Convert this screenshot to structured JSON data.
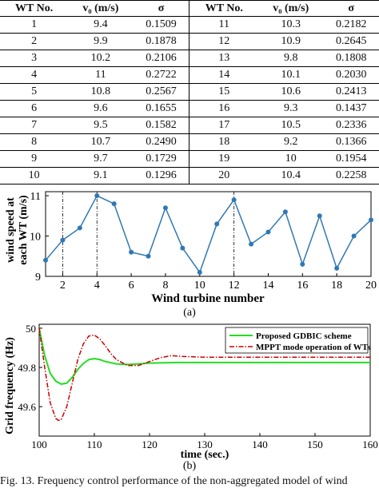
{
  "table": {
    "headers": [
      "WT No.",
      "v₀ (m/s)",
      "σ",
      "WT No.",
      "v₀ (m/s)",
      "σ"
    ],
    "rows": [
      [
        "1",
        "9.4",
        "0.1509",
        "11",
        "10.3",
        "0.2182"
      ],
      [
        "2",
        "9.9",
        "0.1878",
        "12",
        "10.9",
        "0.2645"
      ],
      [
        "3",
        "10.2",
        "0.2106",
        "13",
        "9.8",
        "0.1808"
      ],
      [
        "4",
        "11",
        "0.2722",
        "14",
        "10.1",
        "0.2030"
      ],
      [
        "5",
        "10.8",
        "0.2567",
        "15",
        "10.6",
        "0.2413"
      ],
      [
        "6",
        "9.6",
        "0.1655",
        "16",
        "9.3",
        "0.1437"
      ],
      [
        "7",
        "9.5",
        "0.1582",
        "17",
        "10.5",
        "0.2336"
      ],
      [
        "8",
        "10.7",
        "0.2490",
        "18",
        "9.2",
        "0.1366"
      ],
      [
        "9",
        "9.7",
        "0.1729",
        "19",
        "10",
        "0.1954"
      ],
      [
        "10",
        "9.1",
        "0.1296",
        "20",
        "10.4",
        "0.2258"
      ]
    ]
  },
  "chart_data": [
    {
      "type": "line",
      "panel_label": "(a)",
      "xlabel": "Wind turbine number",
      "ylabel_line1": "wind speed at",
      "ylabel_line2": "each WT (m/s)",
      "x": [
        1,
        2,
        3,
        4,
        5,
        6,
        7,
        8,
        9,
        10,
        11,
        12,
        13,
        14,
        15,
        16,
        17,
        18,
        19,
        20
      ],
      "series": [
        {
          "values": [
            9.4,
            9.9,
            10.2,
            11,
            10.8,
            9.6,
            9.5,
            10.7,
            9.7,
            9.1,
            10.3,
            10.9,
            9.8,
            10.1,
            10.6,
            9.3,
            10.5,
            9.2,
            10,
            10.4
          ],
          "color": "#2f78b4"
        }
      ],
      "xlim": [
        1,
        20
      ],
      "ylim": [
        9,
        11.1
      ],
      "xticks": [
        2,
        4,
        6,
        8,
        10,
        12,
        14,
        16,
        18,
        20
      ],
      "yticks": [
        9,
        10,
        11
      ],
      "vertical_lines": [
        2,
        4,
        12
      ]
    },
    {
      "type": "line",
      "panel_label": "(b)",
      "xlabel": "time (sec.)",
      "ylabel": "Grid frequency (Hz)",
      "xlim": [
        100,
        160
      ],
      "ylim": [
        49.45,
        50.02
      ],
      "xticks": [
        100,
        110,
        120,
        130,
        140,
        150,
        160
      ],
      "yticks": [
        49.6,
        49.8,
        50
      ],
      "legend_position": "top-right",
      "series": [
        {
          "name": "Proposed GDBIC scheme",
          "color": "#22dd22",
          "style": "solid",
          "x": [
            100,
            101,
            102,
            103,
            104,
            105,
            106,
            107,
            108,
            109,
            110,
            111,
            112,
            114,
            116,
            118,
            120,
            125,
            130,
            140,
            150,
            160
          ],
          "values": [
            50,
            49.86,
            49.77,
            49.73,
            49.715,
            49.72,
            49.75,
            49.79,
            49.82,
            49.84,
            49.845,
            49.84,
            49.83,
            49.818,
            49.815,
            49.818,
            49.822,
            49.825,
            49.825,
            49.825,
            49.825,
            49.825
          ]
        },
        {
          "name": "MPPT mode operation of WTs",
          "color": "#cc0000",
          "style": "dashdot",
          "x": [
            100,
            101,
            102,
            103,
            103.5,
            104,
            105,
            106,
            107,
            108,
            109,
            110,
            111,
            112,
            113,
            114,
            116,
            118,
            120,
            122,
            124,
            126,
            130,
            140,
            150,
            160
          ],
          "values": [
            50,
            49.8,
            49.62,
            49.54,
            49.53,
            49.535,
            49.6,
            49.72,
            49.84,
            49.92,
            49.96,
            49.965,
            49.945,
            49.91,
            49.87,
            49.84,
            49.81,
            49.81,
            49.83,
            49.85,
            49.86,
            49.856,
            49.852,
            49.852,
            49.852,
            49.852
          ]
        }
      ]
    }
  ],
  "caption": "Fig. 13. Frequency control performance of the non-aggregated model of wind"
}
